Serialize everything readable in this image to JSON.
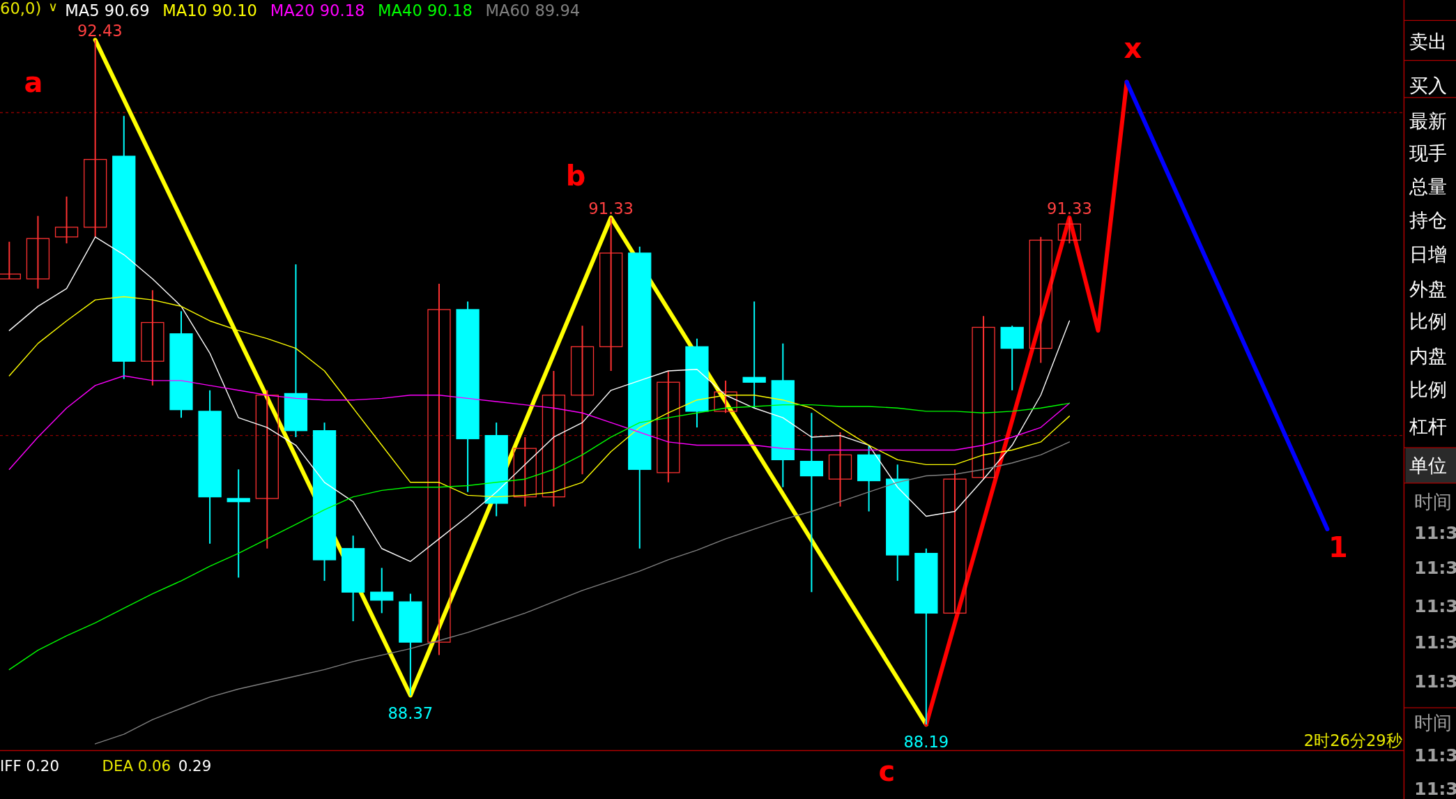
{
  "chart_data": {
    "type": "candlestick",
    "categories": [
      null,
      null,
      null,
      null,
      null,
      null,
      null,
      null,
      null,
      null,
      null,
      null,
      null,
      null,
      null,
      null,
      null,
      null,
      null,
      null,
      null,
      null,
      null,
      null,
      null,
      null,
      null,
      null,
      null,
      null,
      null,
      null,
      null,
      null,
      null,
      null,
      null,
      null,
      null,
      null,
      null,
      null,
      null,
      null,
      null,
      null,
      null,
      null,
      null
    ],
    "ohlc": [
      [
        90.95,
        91.18,
        90.95,
        90.98
      ],
      [
        90.95,
        91.34,
        90.89,
        91.2
      ],
      [
        91.21,
        91.46,
        91.17,
        91.27
      ],
      [
        91.27,
        92.43,
        91.21,
        91.69
      ],
      [
        91.71,
        91.96,
        90.33,
        90.44
      ],
      [
        90.44,
        90.88,
        90.29,
        90.68
      ],
      [
        90.61,
        90.75,
        90.09,
        90.14
      ],
      [
        90.13,
        90.26,
        89.31,
        89.6
      ],
      [
        89.59,
        89.77,
        89.1,
        89.57
      ],
      [
        89.59,
        90.26,
        89.28,
        90.23
      ],
      [
        90.24,
        91.04,
        89.97,
        90.01
      ],
      [
        90.01,
        90.06,
        89.08,
        89.21
      ],
      [
        89.28,
        89.36,
        88.83,
        89.01
      ],
      [
        89.01,
        89.16,
        88.88,
        88.96
      ],
      [
        88.95,
        89.0,
        88.37,
        88.7
      ],
      [
        88.7,
        90.92,
        88.62,
        90.76
      ],
      [
        90.76,
        90.81,
        89.63,
        89.96
      ],
      [
        89.98,
        90.06,
        89.48,
        89.56
      ],
      [
        89.6,
        89.97,
        89.54,
        89.9
      ],
      [
        89.6,
        90.38,
        89.54,
        90.23
      ],
      [
        90.23,
        90.66,
        89.74,
        90.53
      ],
      [
        90.53,
        91.33,
        90.38,
        91.11
      ],
      [
        91.11,
        91.15,
        89.28,
        89.77
      ],
      [
        89.75,
        90.38,
        89.69,
        90.31
      ],
      [
        90.53,
        90.58,
        90.03,
        90.13
      ],
      [
        90.13,
        90.32,
        90.12,
        90.25
      ],
      [
        90.34,
        90.81,
        90.15,
        90.31
      ],
      [
        90.32,
        90.55,
        89.66,
        89.83
      ],
      [
        89.82,
        90.12,
        89.01,
        89.73
      ],
      [
        89.71,
        90.0,
        89.54,
        89.86
      ],
      [
        89.86,
        89.92,
        89.51,
        89.7
      ],
      [
        89.71,
        89.8,
        89.08,
        89.24
      ],
      [
        89.25,
        89.28,
        88.19,
        88.88
      ],
      [
        88.88,
        89.77,
        88.88,
        89.71
      ],
      [
        89.72,
        90.72,
        89.71,
        90.65
      ],
      [
        90.65,
        90.66,
        90.26,
        90.52
      ],
      [
        90.52,
        91.21,
        90.43,
        91.19
      ],
      [
        91.19,
        91.33,
        91.17,
        91.29
      ],
      null,
      null,
      null,
      null,
      null,
      null,
      null,
      null,
      null,
      null,
      null
    ],
    "colors": [
      "#ff3232",
      "#ff3232",
      "#ff3232",
      "#ff3232",
      "#00ffff",
      "#ff3232",
      "#00ffff",
      "#00ffff",
      "#00ffff",
      "#ff3232",
      "#00ffff",
      "#00ffff",
      "#00ffff",
      "#00ffff",
      "#00ffff",
      "#ff3232",
      "#00ffff",
      "#00ffff",
      "#ff3232",
      "#ff3232",
      "#ff3232",
      "#ff3232",
      "#00ffff",
      "#ff3232",
      "#00ffff",
      "#ff3232",
      "#00ffff",
      "#00ffff",
      "#00ffff",
      "#ff3232",
      "#00ffff",
      "#00ffff",
      "#00ffff",
      "#ff3232",
      "#ff3232",
      "#00ffff",
      "#ff3232",
      "#ff3232",
      null,
      null,
      null,
      null,
      null,
      null,
      null,
      null,
      null,
      null,
      null
    ],
    "series": [
      {
        "type": "line",
        "name": "MA5 90.69",
        "color": "#ffffff",
        "values": [
          90.63,
          90.78,
          90.89,
          91.21,
          91.1,
          90.95,
          90.78,
          90.49,
          90.09,
          90.03,
          89.92,
          89.69,
          89.57,
          89.28,
          89.2,
          89.34,
          89.48,
          89.63,
          89.8,
          89.97,
          90.06,
          90.26,
          90.32,
          90.38,
          90.39,
          90.23,
          90.15,
          90.09,
          89.97,
          89.98,
          89.92,
          89.66,
          89.48,
          89.51,
          89.71,
          89.92,
          90.23,
          90.69,
          null,
          null,
          null,
          null,
          null,
          null,
          null,
          null,
          null,
          null,
          null
        ]
      },
      {
        "type": "line",
        "name": "MA10 90.10",
        "color": "#ffff00",
        "values": [
          90.35,
          90.55,
          90.69,
          90.82,
          90.84,
          90.82,
          90.78,
          90.69,
          90.63,
          90.58,
          90.52,
          90.38,
          90.15,
          89.92,
          89.69,
          89.69,
          89.61,
          89.6,
          89.61,
          89.63,
          89.69,
          89.88,
          90.03,
          90.12,
          90.2,
          90.23,
          90.23,
          90.2,
          90.15,
          90.03,
          89.92,
          89.83,
          89.8,
          89.8,
          89.86,
          89.89,
          89.94,
          90.1,
          null,
          null,
          null,
          null,
          null,
          null,
          null,
          null,
          null,
          null,
          null
        ]
      },
      {
        "type": "line",
        "name": "MA20 90.18",
        "color": "#ff00ff",
        "values": [
          89.77,
          89.97,
          90.15,
          90.29,
          90.35,
          90.32,
          90.32,
          90.29,
          90.26,
          90.23,
          90.21,
          90.2,
          90.2,
          90.21,
          90.23,
          90.23,
          90.21,
          90.19,
          90.17,
          90.15,
          90.12,
          90.06,
          90.0,
          89.94,
          89.92,
          89.92,
          89.92,
          89.9,
          89.89,
          89.89,
          89.89,
          89.89,
          89.89,
          89.89,
          89.92,
          89.97,
          90.03,
          90.18,
          null,
          null,
          null,
          null,
          null,
          null,
          null,
          null,
          null,
          null,
          null
        ]
      },
      {
        "type": "line",
        "name": "MA40 90.18",
        "color": "#00ff00",
        "values": [
          88.53,
          88.65,
          88.74,
          88.82,
          88.91,
          89.0,
          89.08,
          89.17,
          89.25,
          89.34,
          89.43,
          89.52,
          89.6,
          89.64,
          89.66,
          89.66,
          89.67,
          89.69,
          89.71,
          89.77,
          89.86,
          89.97,
          90.06,
          90.09,
          90.12,
          90.15,
          90.16,
          90.17,
          90.17,
          90.16,
          90.16,
          90.15,
          90.13,
          90.13,
          90.12,
          90.13,
          90.15,
          90.18,
          null,
          null,
          null,
          null,
          null,
          null,
          null,
          null,
          null,
          null,
          null
        ]
      },
      {
        "type": "line",
        "name": "MA60 89.94",
        "color": "#808080",
        "values": [
          null,
          null,
          null,
          88.07,
          88.13,
          88.22,
          88.29,
          88.36,
          88.41,
          88.45,
          88.49,
          88.53,
          88.58,
          88.62,
          88.66,
          88.71,
          88.76,
          88.82,
          88.88,
          88.95,
          89.02,
          89.08,
          89.14,
          89.21,
          89.27,
          89.34,
          89.4,
          89.46,
          89.51,
          89.57,
          89.63,
          89.69,
          89.73,
          89.74,
          89.77,
          89.81,
          89.86,
          89.94,
          null,
          null,
          null,
          null,
          null,
          null,
          null,
          null,
          null,
          null,
          null
        ]
      },
      {
        "type": "line",
        "color": "#ffff00",
        "values": [
          null,
          null,
          null,
          92.43,
          null,
          null,
          null,
          null,
          null,
          null,
          null,
          null,
          null,
          null,
          88.37,
          null,
          null,
          null,
          null,
          null,
          null,
          91.33,
          null,
          null,
          null,
          null,
          null,
          null,
          null,
          null,
          null,
          null,
          88.19,
          null,
          null,
          null,
          null,
          null,
          null,
          null,
          null,
          null,
          null,
          null,
          null,
          null,
          null,
          null,
          null
        ]
      },
      {
        "type": "line",
        "color": "#ff0000",
        "values": [
          null,
          null,
          null,
          null,
          null,
          null,
          null,
          null,
          null,
          null,
          null,
          null,
          null,
          null,
          null,
          null,
          null,
          null,
          null,
          null,
          null,
          null,
          null,
          null,
          null,
          null,
          null,
          null,
          null,
          null,
          null,
          null,
          88.19,
          null,
          null,
          null,
          null,
          91.33,
          90.63,
          92.17,
          null,
          null,
          null,
          null,
          null,
          null,
          null,
          null,
          null
        ]
      },
      {
        "type": "line",
        "color": "#0000ff",
        "values": [
          null,
          null,
          null,
          null,
          null,
          null,
          null,
          null,
          null,
          null,
          null,
          null,
          null,
          null,
          null,
          null,
          null,
          null,
          null,
          null,
          null,
          null,
          null,
          null,
          null,
          null,
          null,
          null,
          null,
          null,
          null,
          null,
          null,
          null,
          null,
          null,
          null,
          null,
          null,
          92.17,
          null,
          null,
          null,
          null,
          null,
          null,
          89.4,
          null,
          null
        ]
      }
    ],
    "ref_lines": [
      {
        "axis": "y",
        "value": 91.98,
        "color": "#8b0000",
        "line_style": "dashed"
      },
      {
        "axis": "y",
        "value": 89.98,
        "color": "#8b0000",
        "line_style": "dashed"
      }
    ],
    "legend": "top left",
    "annotations": [
      "60,0)",
      "∨",
      {
        "text": "92.43",
        "y": 92.43
      },
      {
        "text": "91.33",
        "y": 91.33
      },
      {
        "text": "88.37",
        "y": 88.37
      },
      {
        "text": "88.19",
        "y": 88.19
      },
      {
        "text": "91.33",
        "y": 91.33
      },
      "a",
      "b",
      "x",
      "c",
      "1",
      "IFF 0.20",
      "DEA 0.06",
      "0.29",
      "2时26分29秒",
      "卖出",
      "买入",
      "最新",
      "现手",
      "总量",
      "持仓",
      "日增",
      "外盘",
      "比例",
      "内盘",
      "比例",
      "杠杆",
      "单位",
      "时间",
      "11:3",
      "11:3",
      "11:3",
      "11:3",
      "11:3",
      "时间",
      "11:3",
      "11:3"
    ]
  }
}
